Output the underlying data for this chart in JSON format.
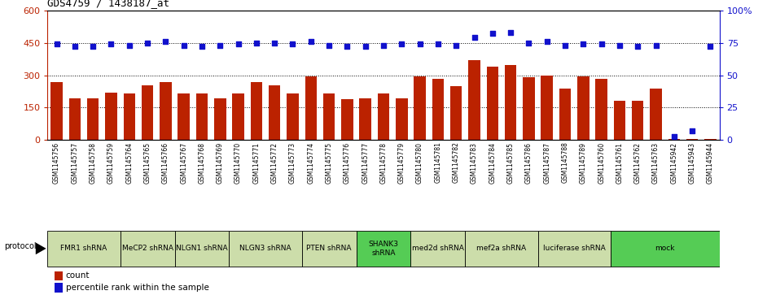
{
  "title": "GDS4759 / 1438187_at",
  "samples": [
    "GSM1145756",
    "GSM1145757",
    "GSM1145758",
    "GSM1145759",
    "GSM1145764",
    "GSM1145765",
    "GSM1145766",
    "GSM1145767",
    "GSM1145768",
    "GSM1145769",
    "GSM1145770",
    "GSM1145771",
    "GSM1145772",
    "GSM1145773",
    "GSM1145774",
    "GSM1145775",
    "GSM1145776",
    "GSM1145777",
    "GSM1145778",
    "GSM1145779",
    "GSM1145780",
    "GSM1145781",
    "GSM1145782",
    "GSM1145783",
    "GSM1145784",
    "GSM1145785",
    "GSM1145786",
    "GSM1145787",
    "GSM1145788",
    "GSM1145789",
    "GSM1145760",
    "GSM1145761",
    "GSM1145762",
    "GSM1145763",
    "GSM1145942",
    "GSM1145943",
    "GSM1145944"
  ],
  "counts": [
    268,
    195,
    192,
    218,
    215,
    255,
    268,
    215,
    215,
    192,
    215,
    268,
    252,
    215,
    295,
    215,
    188,
    192,
    215,
    192,
    295,
    282,
    248,
    368,
    338,
    348,
    290,
    300,
    238,
    295,
    282,
    182,
    182,
    238,
    5,
    5,
    5
  ],
  "percentiles": [
    74,
    72,
    72,
    74,
    73,
    75,
    76,
    73,
    72,
    73,
    74,
    75,
    75,
    74,
    76,
    73,
    72,
    72,
    73,
    74,
    74,
    74,
    73,
    79,
    82,
    83,
    75,
    76,
    73,
    74,
    74,
    73,
    72,
    73,
    3,
    7,
    72
  ],
  "groups": [
    {
      "label": "FMR1 shRNA",
      "start": 0,
      "end": 4,
      "color": "#ccddaa"
    },
    {
      "label": "MeCP2 shRNA",
      "start": 4,
      "end": 7,
      "color": "#ccddaa"
    },
    {
      "label": "NLGN1 shRNA",
      "start": 7,
      "end": 10,
      "color": "#ccddaa"
    },
    {
      "label": "NLGN3 shRNA",
      "start": 10,
      "end": 14,
      "color": "#ccddaa"
    },
    {
      "label": "PTEN shRNA",
      "start": 14,
      "end": 17,
      "color": "#ccddaa"
    },
    {
      "label": "SHANK3\nshRNA",
      "start": 17,
      "end": 20,
      "color": "#55cc55"
    },
    {
      "label": "med2d shRNA",
      "start": 20,
      "end": 23,
      "color": "#ccddaa"
    },
    {
      "label": "mef2a shRNA",
      "start": 23,
      "end": 27,
      "color": "#ccddaa"
    },
    {
      "label": "luciferase shRNA",
      "start": 27,
      "end": 31,
      "color": "#ccddaa"
    },
    {
      "label": "mock",
      "start": 31,
      "end": 37,
      "color": "#55cc55"
    }
  ],
  "bar_color": "#bb2200",
  "dot_color": "#1111cc",
  "ylim_left": [
    0,
    600
  ],
  "ylim_right": [
    0,
    100
  ],
  "yticks_left": [
    0,
    150,
    300,
    450,
    600
  ],
  "yticks_right": [
    0,
    25,
    50,
    75,
    100
  ],
  "ytick_labels_left": [
    "0",
    "150",
    "300",
    "450",
    "600"
  ],
  "ytick_labels_right": [
    "0",
    "25",
    "50",
    "75",
    "100%"
  ],
  "hlines": [
    150,
    300,
    450
  ],
  "legend_count_label": "count",
  "legend_pct_label": "percentile rank within the sample",
  "protocol_label": "protocol"
}
